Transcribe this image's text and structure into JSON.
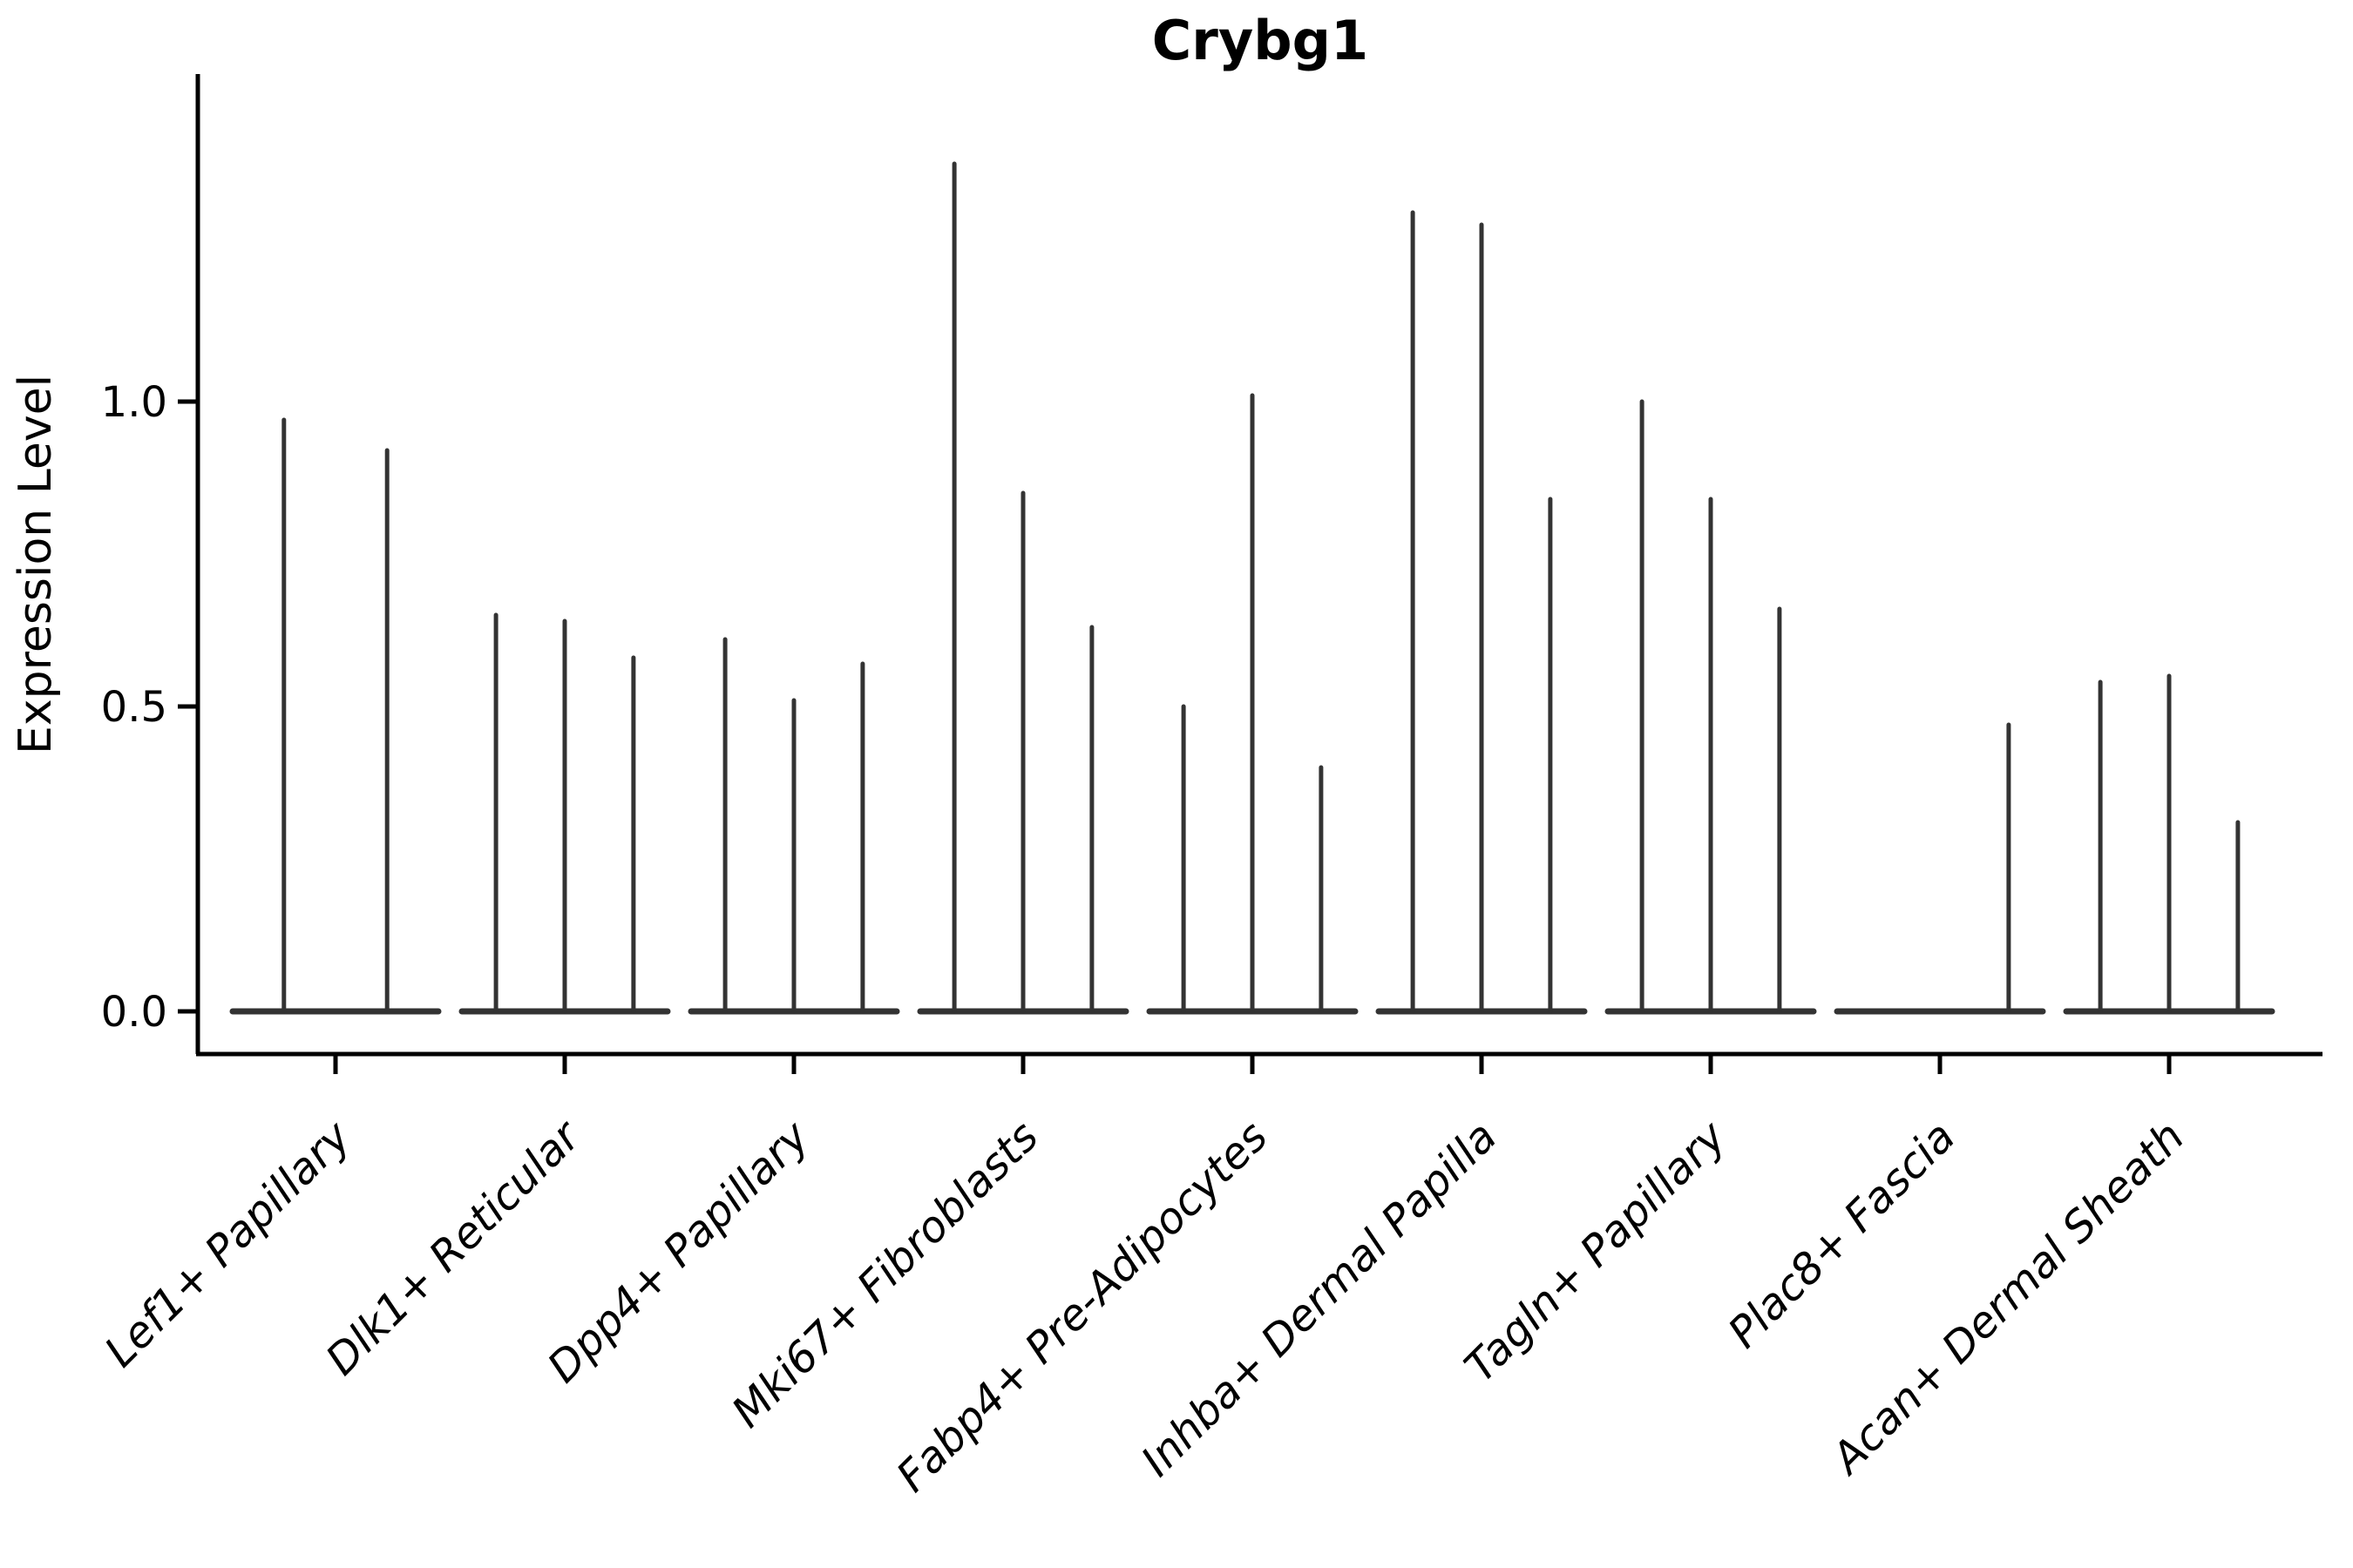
{
  "chart_data": {
    "type": "violin",
    "title": "Crybg1",
    "ylabel": "Expression Level",
    "xlabel": "",
    "ytick_labels": [
      "0.0",
      "0.5",
      "1.0"
    ],
    "ytick_values": [
      0.0,
      0.5,
      1.0
    ],
    "ylim": [
      0.0,
      1.54
    ],
    "grid": false,
    "legend": "none",
    "categories": [
      "Lef1+ Papillary",
      "Dlk1+ Reticular",
      "Dpp4+ Papillary",
      "Mki67+ Fibroblasts",
      "Fabp4+ Pre-Adipocytes",
      "Inhba+ Dermal Papilla",
      "Tagln+ Papillary",
      "Plac8+ Fascia",
      "Acan+ Dermal Sheath"
    ],
    "groups": [
      {
        "label": "Lef1+ Papillary",
        "violin_max_values": [
          0.97,
          0.92
        ]
      },
      {
        "label": "Dlk1+ Reticular",
        "violin_max_values": [
          0.65,
          0.64,
          0.58
        ]
      },
      {
        "label": "Dpp4+ Papillary",
        "violin_max_values": [
          0.61,
          0.51,
          0.57
        ]
      },
      {
        "label": "Mki67+ Fibroblasts",
        "violin_max_values": [
          1.39,
          0.85,
          0.63
        ]
      },
      {
        "label": "Fabp4+ Pre-Adipocytes",
        "violin_max_values": [
          0.5,
          1.01,
          0.4
        ]
      },
      {
        "label": "Inhba+ Dermal Papilla",
        "violin_max_values": [
          1.31,
          1.29,
          0.84
        ]
      },
      {
        "label": "Tagln+ Papillary",
        "violin_max_values": [
          1.0,
          0.84,
          0.66
        ]
      },
      {
        "label": "Plac8+ Fascia",
        "violin_max_values": [
          0.0,
          0.0,
          0.47
        ]
      },
      {
        "label": "Acan+ Dermal Sheath",
        "violin_max_values": [
          0.54,
          0.55,
          0.31
        ]
      }
    ],
    "colors": {
      "violin": "#333333",
      "axis": "#000000",
      "text": "#000000",
      "background": "#ffffff"
    }
  }
}
